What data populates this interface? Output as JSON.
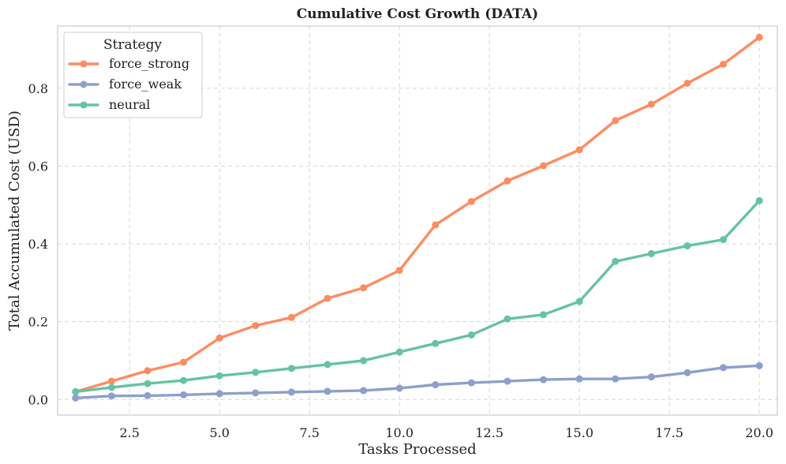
{
  "chart_data": {
    "type": "line",
    "title": "Cumulative Cost Growth (DATA)",
    "xlabel": "Tasks Processed",
    "ylabel": "Total Accumulated Cost (USD)",
    "xlim": [
      0.5,
      20.5
    ],
    "ylim": [
      -0.04,
      0.96
    ],
    "xticks": [
      2.5,
      5.0,
      7.5,
      10.0,
      12.5,
      15.0,
      17.5,
      20.0
    ],
    "xtick_labels": [
      "2.5",
      "5.0",
      "7.5",
      "10.0",
      "12.5",
      "15.0",
      "17.5",
      "20.0"
    ],
    "yticks": [
      0.0,
      0.2,
      0.4,
      0.6,
      0.8
    ],
    "ytick_labels": [
      "0.0",
      "0.2",
      "0.4",
      "0.6",
      "0.8"
    ],
    "grid": true,
    "legend": {
      "title": "Strategy",
      "position": "top-left"
    },
    "x": [
      1,
      2,
      3,
      4,
      5,
      6,
      7,
      8,
      9,
      10,
      11,
      12,
      13,
      14,
      15,
      16,
      17,
      18,
      19,
      20
    ],
    "series": [
      {
        "name": "force_strong",
        "color": "#fc8d62",
        "values": [
          0.02,
          0.047,
          0.074,
          0.096,
          0.158,
          0.19,
          0.211,
          0.26,
          0.287,
          0.332,
          0.449,
          0.509,
          0.562,
          0.601,
          0.642,
          0.717,
          0.759,
          0.813,
          0.862,
          0.931
        ]
      },
      {
        "name": "force_weak",
        "color": "#8da0cb",
        "values": [
          0.004,
          0.009,
          0.01,
          0.012,
          0.015,
          0.017,
          0.019,
          0.021,
          0.023,
          0.029,
          0.038,
          0.043,
          0.047,
          0.051,
          0.053,
          0.053,
          0.058,
          0.069,
          0.082,
          0.087
        ]
      },
      {
        "name": "neural",
        "color": "#66c2a5",
        "values": [
          0.02,
          0.031,
          0.041,
          0.049,
          0.061,
          0.07,
          0.08,
          0.09,
          0.1,
          0.122,
          0.144,
          0.166,
          0.207,
          0.218,
          0.252,
          0.355,
          0.375,
          0.395,
          0.411,
          0.511
        ]
      }
    ]
  }
}
